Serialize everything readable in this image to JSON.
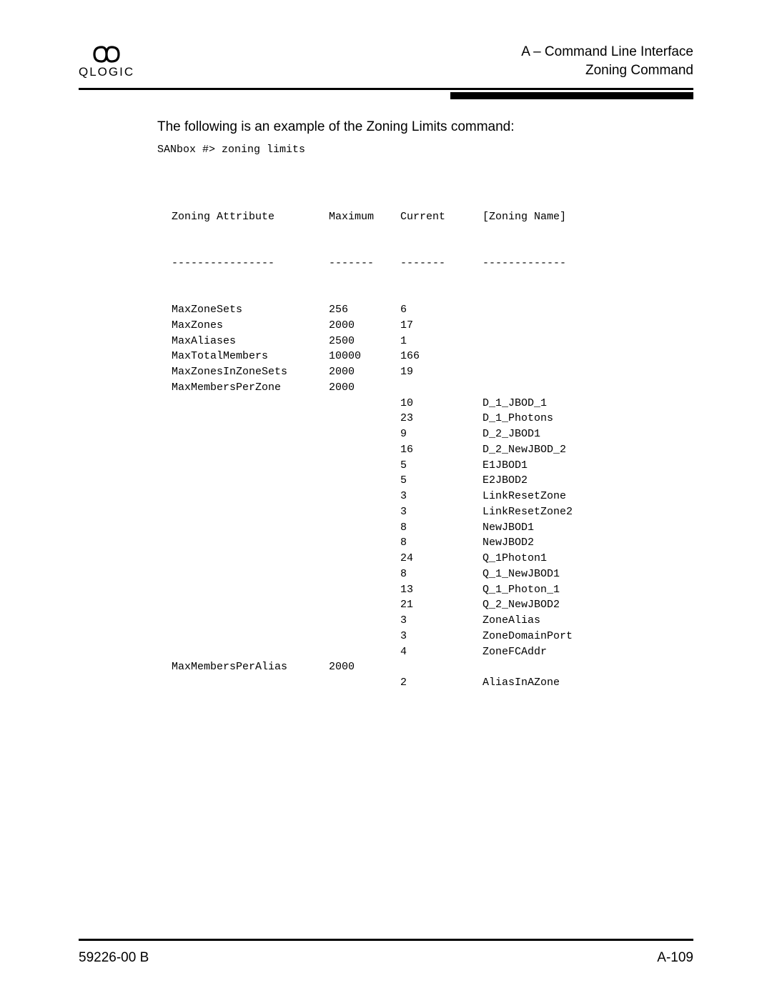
{
  "header": {
    "logo_text": "QLOGIC",
    "line1": "A – Command Line Interface",
    "line2": "Zoning Command"
  },
  "intro": "The following is an example of the Zoning Limits command:",
  "prompt": "SANbox #> zoning limits",
  "table": {
    "headers": {
      "attr": "Zoning Attribute",
      "max": "Maximum",
      "cur": "Current",
      "name": "[Zoning Name]"
    },
    "dashes": {
      "attr": "----------------",
      "max": "-------",
      "cur": "-------",
      "name": "-------------"
    },
    "rows": [
      {
        "attr": "MaxZoneSets",
        "max": "256",
        "cur": "6",
        "name": ""
      },
      {
        "attr": "MaxZones",
        "max": "2000",
        "cur": "17",
        "name": ""
      },
      {
        "attr": "MaxAliases",
        "max": "2500",
        "cur": "1",
        "name": ""
      },
      {
        "attr": "MaxTotalMembers",
        "max": "10000",
        "cur": "166",
        "name": ""
      },
      {
        "attr": "MaxZonesInZoneSets",
        "max": "2000",
        "cur": "19",
        "name": ""
      },
      {
        "attr": "MaxMembersPerZone",
        "max": "2000",
        "cur": "",
        "name": ""
      },
      {
        "attr": "",
        "max": "",
        "cur": "10",
        "name": "D_1_JBOD_1"
      },
      {
        "attr": "",
        "max": "",
        "cur": "23",
        "name": "D_1_Photons"
      },
      {
        "attr": "",
        "max": "",
        "cur": "9",
        "name": "D_2_JBOD1"
      },
      {
        "attr": "",
        "max": "",
        "cur": "16",
        "name": "D_2_NewJBOD_2"
      },
      {
        "attr": "",
        "max": "",
        "cur": "5",
        "name": "E1JBOD1"
      },
      {
        "attr": "",
        "max": "",
        "cur": "5",
        "name": "E2JBOD2"
      },
      {
        "attr": "",
        "max": "",
        "cur": "3",
        "name": "LinkResetZone"
      },
      {
        "attr": "",
        "max": "",
        "cur": "3",
        "name": "LinkResetZone2"
      },
      {
        "attr": "",
        "max": "",
        "cur": "8",
        "name": "NewJBOD1"
      },
      {
        "attr": "",
        "max": "",
        "cur": "8",
        "name": "NewJBOD2"
      },
      {
        "attr": "",
        "max": "",
        "cur": "24",
        "name": "Q_1Photon1"
      },
      {
        "attr": "",
        "max": "",
        "cur": "8",
        "name": "Q_1_NewJBOD1"
      },
      {
        "attr": "",
        "max": "",
        "cur": "13",
        "name": "Q_1_Photon_1"
      },
      {
        "attr": "",
        "max": "",
        "cur": "21",
        "name": "Q_2_NewJBOD2"
      },
      {
        "attr": "",
        "max": "",
        "cur": "3",
        "name": "ZoneAlias"
      },
      {
        "attr": "",
        "max": "",
        "cur": "3",
        "name": "ZoneDomainPort"
      },
      {
        "attr": "",
        "max": "",
        "cur": "4",
        "name": "ZoneFCAddr"
      },
      {
        "attr": "MaxMembersPerAlias",
        "max": "2000",
        "cur": "",
        "name": ""
      },
      {
        "attr": "",
        "max": "",
        "cur": "2",
        "name": "AliasInAZone"
      }
    ]
  },
  "footer": {
    "left": "59226-00 B",
    "right": "A-109"
  }
}
